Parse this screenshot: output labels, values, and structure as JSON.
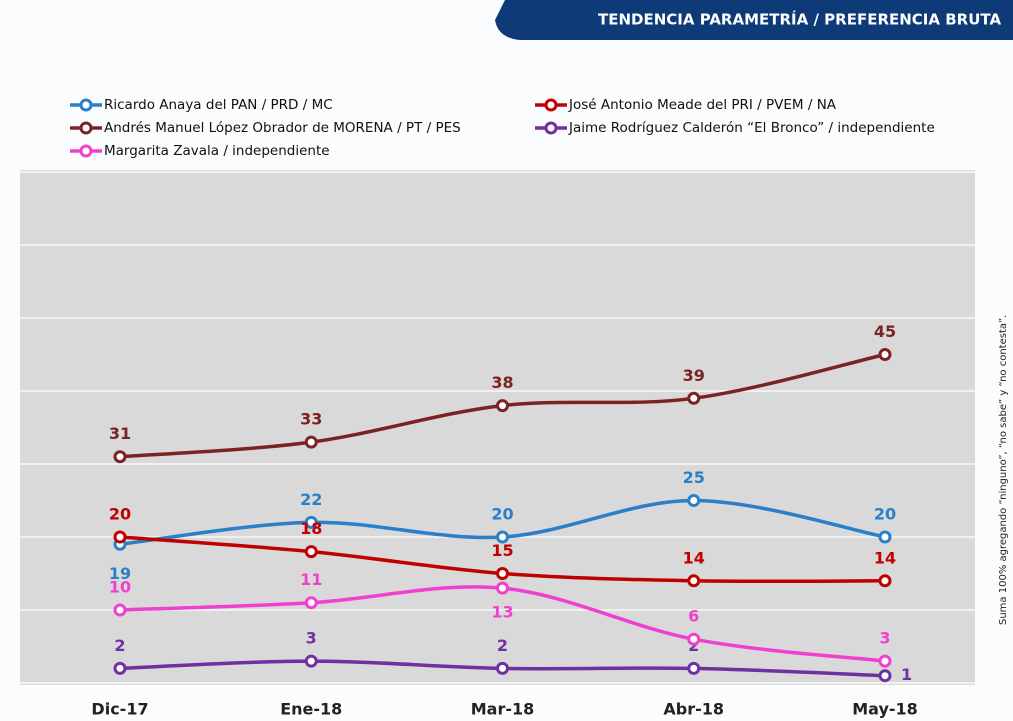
{
  "chart_data": {
    "type": "line",
    "title": "TENDENCIA PARAMETRÍA / PREFERENCIA BRUTA",
    "note": "Suma 100% agregando “ninguno”, “no sabe” y “no contesta”.",
    "categories": [
      "Dic-17",
      "Ene-18",
      "Mar-18",
      "Abr-18",
      "May-18"
    ],
    "ylim": [
      0,
      70
    ],
    "yticks": [
      0,
      10,
      20,
      30,
      40,
      50,
      60,
      70
    ],
    "grid": true,
    "series": [
      {
        "name": "Ricardo Anaya del PAN / PRD / MC",
        "color": "#2a7fc9",
        "values": [
          19,
          22,
          20,
          25,
          20
        ]
      },
      {
        "name": "José Antonio Meade del PRI / PVEM / NA",
        "color": "#c00000",
        "values": [
          20,
          18,
          15,
          14,
          14
        ]
      },
      {
        "name": "Andrés Manuel López Obrador de MORENA / PT / PES",
        "color": "#7b2323",
        "values": [
          31,
          33,
          38,
          39,
          45
        ]
      },
      {
        "name": "Jaime Rodríguez Calderón  “El Bronco” / independiente",
        "color": "#7030a0",
        "values": [
          2,
          3,
          2,
          2,
          1
        ]
      },
      {
        "name": "Margarita Zavala / independiente",
        "color": "#f040d0",
        "values": [
          10,
          11,
          13,
          6,
          3
        ]
      }
    ]
  }
}
